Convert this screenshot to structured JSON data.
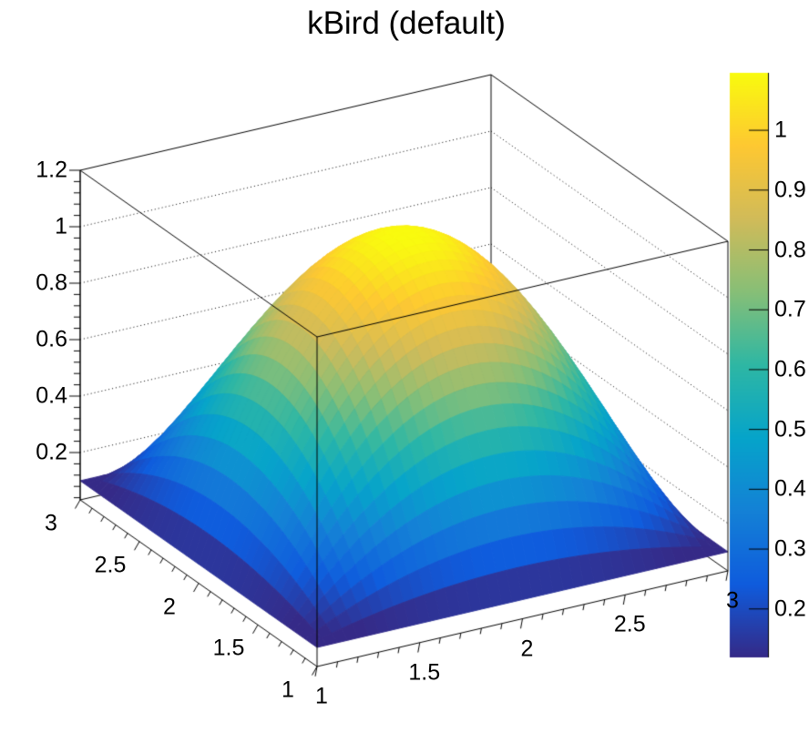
{
  "title": "kBird (default)",
  "chart_data": {
    "type": "surface3d",
    "title": "kBird (default)",
    "function": "z = 0.1 + (1 - (x-2)^2) * (1 - (y-2)^2)",
    "x_range": [
      1,
      3
    ],
    "y_range": [
      1,
      3
    ],
    "z_min": 0.1,
    "z_max": 1.1,
    "z_axis_max_label": 1.2,
    "x_ticks": [
      "1",
      "1.5",
      "2",
      "2.5",
      "3"
    ],
    "y_ticks": [
      "1",
      "1.5",
      "2",
      "2.5",
      "3"
    ],
    "z_ticks": [
      "0.2",
      "0.4",
      "0.6",
      "0.8",
      "1",
      "1.2"
    ],
    "grid": "dotted horizontal z gridlines on the two back walls",
    "legend_position": "right color bar",
    "colorbar": {
      "ticks": [
        "0.2",
        "0.3",
        "0.4",
        "0.5",
        "0.6",
        "0.7",
        "0.8",
        "0.9",
        "1"
      ],
      "min": 0.119,
      "max": 1.096
    },
    "palette": {
      "name": "kBird (ROOT default palette 57)",
      "stops": [
        "#352A87",
        "#0F5CDD",
        "#1481D6",
        "#06A4CA",
        "#2EB7A4",
        "#87BF77",
        "#D1BB59",
        "#FEC832",
        "#F9FB0E"
      ]
    },
    "surface_samples": {
      "x": [
        1,
        1.25,
        1.5,
        1.75,
        2,
        2.25,
        2.5,
        2.75,
        3
      ],
      "y": [
        1,
        1.25,
        1.5,
        1.75,
        2,
        2.25,
        2.5,
        2.75,
        3
      ],
      "z": [
        [
          0.1,
          0.1,
          0.1,
          0.1,
          0.1,
          0.1,
          0.1,
          0.1,
          0.1
        ],
        [
          0.1,
          0.291,
          0.428,
          0.51,
          0.538,
          0.51,
          0.428,
          0.291,
          0.1
        ],
        [
          0.1,
          0.428,
          0.663,
          0.803,
          0.85,
          0.803,
          0.663,
          0.428,
          0.1
        ],
        [
          0.1,
          0.51,
          0.803,
          0.979,
          1.038,
          0.979,
          0.803,
          0.51,
          0.1
        ],
        [
          0.1,
          0.538,
          0.85,
          1.038,
          1.1,
          1.038,
          0.85,
          0.538,
          0.1
        ],
        [
          0.1,
          0.51,
          0.803,
          0.979,
          1.038,
          0.979,
          0.803,
          0.51,
          0.1
        ],
        [
          0.1,
          0.428,
          0.663,
          0.803,
          0.85,
          0.803,
          0.663,
          0.428,
          0.1
        ],
        [
          0.1,
          0.291,
          0.428,
          0.51,
          0.538,
          0.51,
          0.428,
          0.291,
          0.1
        ],
        [
          0.1,
          0.1,
          0.1,
          0.1,
          0.1,
          0.1,
          0.1,
          0.1,
          0.1
        ]
      ]
    }
  }
}
